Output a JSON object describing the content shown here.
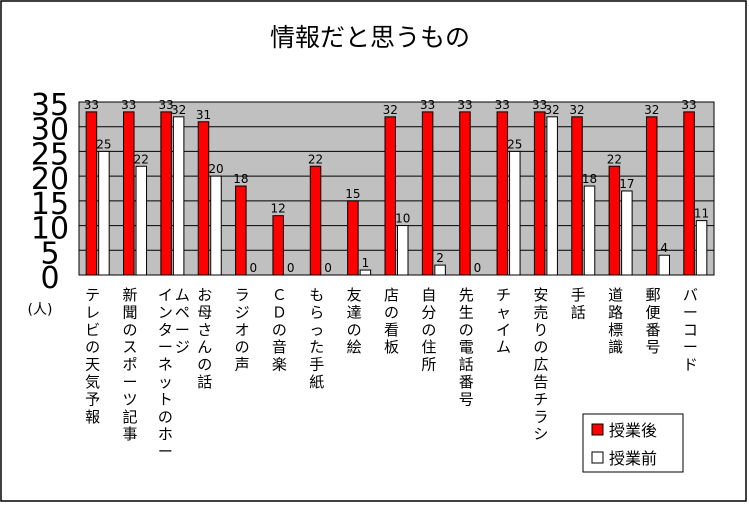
{
  "chart_data": {
    "type": "bar",
    "title": "情報だと思うもの",
    "ylabel": "(人)",
    "ylim": [
      0,
      35
    ],
    "yticks": [
      35,
      30,
      25,
      20,
      15,
      10,
      5,
      0
    ],
    "grid": true,
    "legend_position": "bottom-right",
    "categories": [
      "テレビの天気予報",
      "新聞のスポーツ記事",
      "インターネットのホームページ",
      "お母さんの話",
      "ラジオの声",
      "ＣＤの音楽",
      "もらった手紙",
      "友達の絵",
      "店の看板",
      "自分の住所",
      "先生の電話番号",
      "チャイム",
      "安売りの広告チラシ",
      "手話",
      "道路標識",
      "郵便番号",
      "バーコード"
    ],
    "series": [
      {
        "name": "授業後",
        "color": "#ff0000",
        "values": [
          33,
          33,
          33,
          31,
          18,
          12,
          22,
          15,
          32,
          33,
          33,
          33,
          33,
          32,
          22,
          32,
          33
        ]
      },
      {
        "name": "授業前",
        "color": "#ffffff",
        "values": [
          25,
          22,
          32,
          20,
          0,
          0,
          0,
          1,
          10,
          2,
          0,
          25,
          32,
          18,
          17,
          4,
          11
        ]
      }
    ],
    "colors": {
      "plot_background": "#c0c0c0",
      "border": "#000000"
    }
  }
}
